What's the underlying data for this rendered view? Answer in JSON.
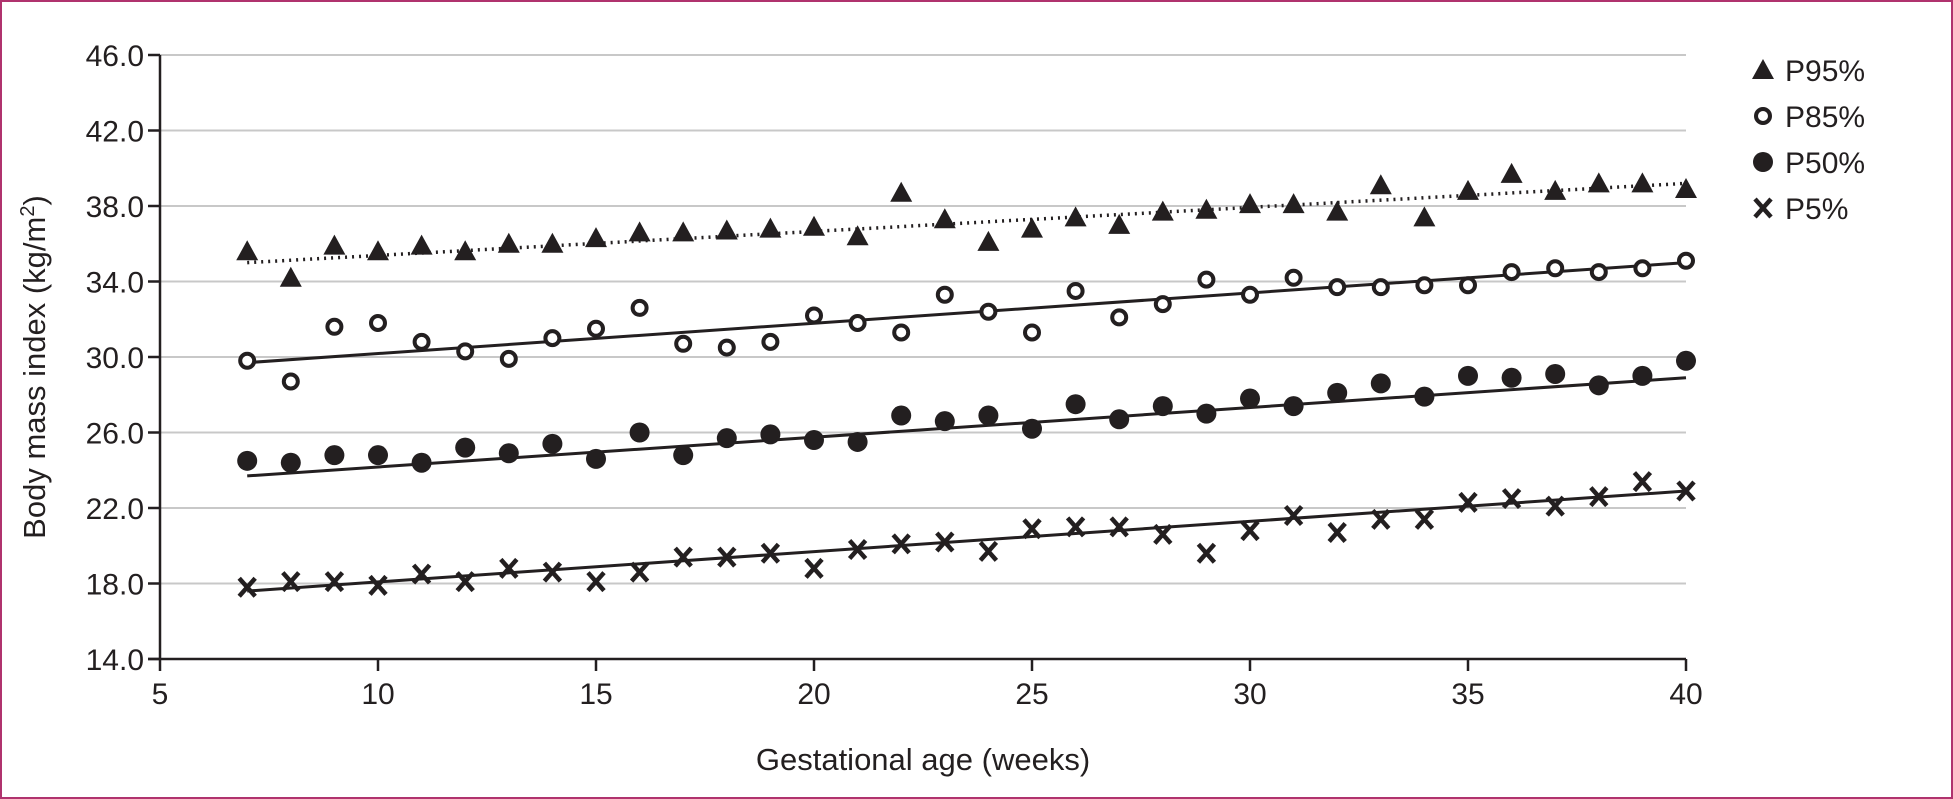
{
  "chart_data": {
    "type": "scatter",
    "title": "",
    "xlabel": "Gestational age (weeks)",
    "ylabel_main": "Body mass index (kg/m",
    "ylabel_sup": "2",
    "ylabel_close": ")",
    "xlim": [
      5,
      40
    ],
    "ylim": [
      14,
      46
    ],
    "x_ticks": [
      5,
      10,
      15,
      20,
      25,
      30,
      35,
      40
    ],
    "y_ticks": [
      14,
      18,
      22,
      26,
      30,
      34,
      38,
      42,
      46
    ],
    "y_tick_labels": [
      "14.0",
      "18.0",
      "22.0",
      "26.0",
      "30.0",
      "34.0",
      "38.0",
      "42.0",
      "46.0"
    ],
    "grid": "horizontal",
    "legend_position": "right",
    "x": [
      7,
      8,
      9,
      10,
      11,
      12,
      13,
      14,
      15,
      16,
      17,
      18,
      19,
      20,
      21,
      22,
      23,
      24,
      25,
      26,
      27,
      28,
      29,
      30,
      31,
      32,
      33,
      34,
      35,
      36,
      37,
      38,
      39,
      40
    ],
    "series": [
      {
        "name": "P95%",
        "marker": "triangle",
        "trendline": "dotted",
        "trend_start": [
          7,
          35.0
        ],
        "trend_end": [
          40,
          39.2
        ],
        "values": [
          35.6,
          34.2,
          35.9,
          35.6,
          35.9,
          35.6,
          36.0,
          36.0,
          36.3,
          36.6,
          36.6,
          36.7,
          36.8,
          36.9,
          36.4,
          38.7,
          37.3,
          36.1,
          36.8,
          37.4,
          37.0,
          37.7,
          37.8,
          38.1,
          38.1,
          37.7,
          39.1,
          37.4,
          38.8,
          39.7,
          38.8,
          39.2,
          39.2,
          38.9
        ]
      },
      {
        "name": "P85%",
        "marker": "open-circle",
        "trendline": "solid",
        "trend_start": [
          7,
          29.7
        ],
        "trend_end": [
          40,
          35.0
        ],
        "values": [
          29.8,
          28.7,
          31.6,
          31.8,
          30.8,
          30.3,
          29.9,
          31.0,
          31.5,
          32.6,
          30.7,
          30.5,
          30.8,
          32.2,
          31.8,
          31.3,
          33.3,
          32.4,
          31.3,
          33.5,
          32.1,
          32.8,
          34.1,
          33.3,
          34.2,
          33.7,
          33.7,
          33.8,
          33.8,
          34.5,
          34.7,
          34.5,
          34.7,
          35.1
        ]
      },
      {
        "name": "P50%",
        "marker": "filled-circle",
        "trendline": "solid",
        "trend_start": [
          7,
          23.7
        ],
        "trend_end": [
          40,
          28.9
        ],
        "values": [
          24.5,
          24.4,
          24.8,
          24.8,
          24.4,
          25.2,
          24.9,
          25.4,
          24.6,
          26.0,
          24.8,
          25.7,
          25.9,
          25.6,
          25.5,
          26.9,
          26.6,
          26.9,
          26.2,
          27.5,
          26.7,
          27.4,
          27.0,
          27.8,
          27.4,
          28.1,
          28.6,
          27.9,
          29.0,
          28.9,
          29.1,
          28.5,
          29.0,
          29.8
        ]
      },
      {
        "name": "P5%",
        "marker": "x",
        "trendline": "solid",
        "trend_start": [
          7,
          17.6
        ],
        "trend_end": [
          40,
          22.9
        ],
        "values": [
          17.8,
          18.1,
          18.1,
          17.9,
          18.5,
          18.1,
          18.8,
          18.6,
          18.1,
          18.6,
          19.4,
          19.4,
          19.6,
          18.8,
          19.8,
          20.1,
          20.2,
          19.7,
          20.9,
          21.0,
          21.0,
          20.6,
          19.6,
          20.8,
          21.6,
          20.7,
          21.4,
          21.4,
          22.3,
          22.5,
          22.1,
          22.6,
          23.4,
          22.9
        ]
      }
    ]
  }
}
